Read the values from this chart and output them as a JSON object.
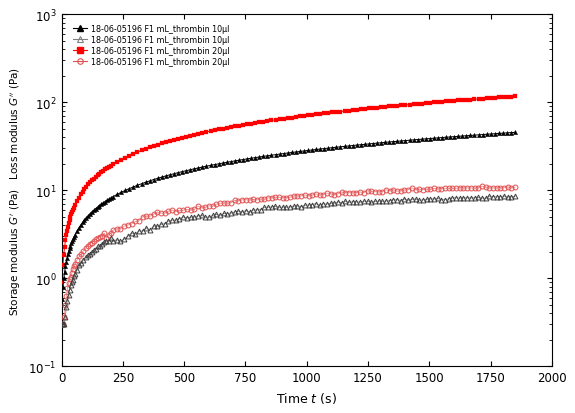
{
  "xlabel": "Time $t$ (s)",
  "ylabel": "Storage modulus $G^{\\prime}$ (Pa)   Loss modulus $G^{\\prime\\prime}$ (Pa)",
  "xlim": [
    0,
    2000
  ],
  "xticks": [
    0,
    250,
    500,
    750,
    1000,
    1250,
    1500,
    1750,
    2000
  ],
  "legend_entries": [
    "18-06-05196 F1 mL_thrombin 10μl",
    "18-06-05196 F1 mL_thrombin 10μl",
    "18-06-05196 F1 mL_thrombin 20μl",
    "18-06-05196 F1 mL_thrombin 20μl"
  ],
  "background_color": "#ffffff"
}
